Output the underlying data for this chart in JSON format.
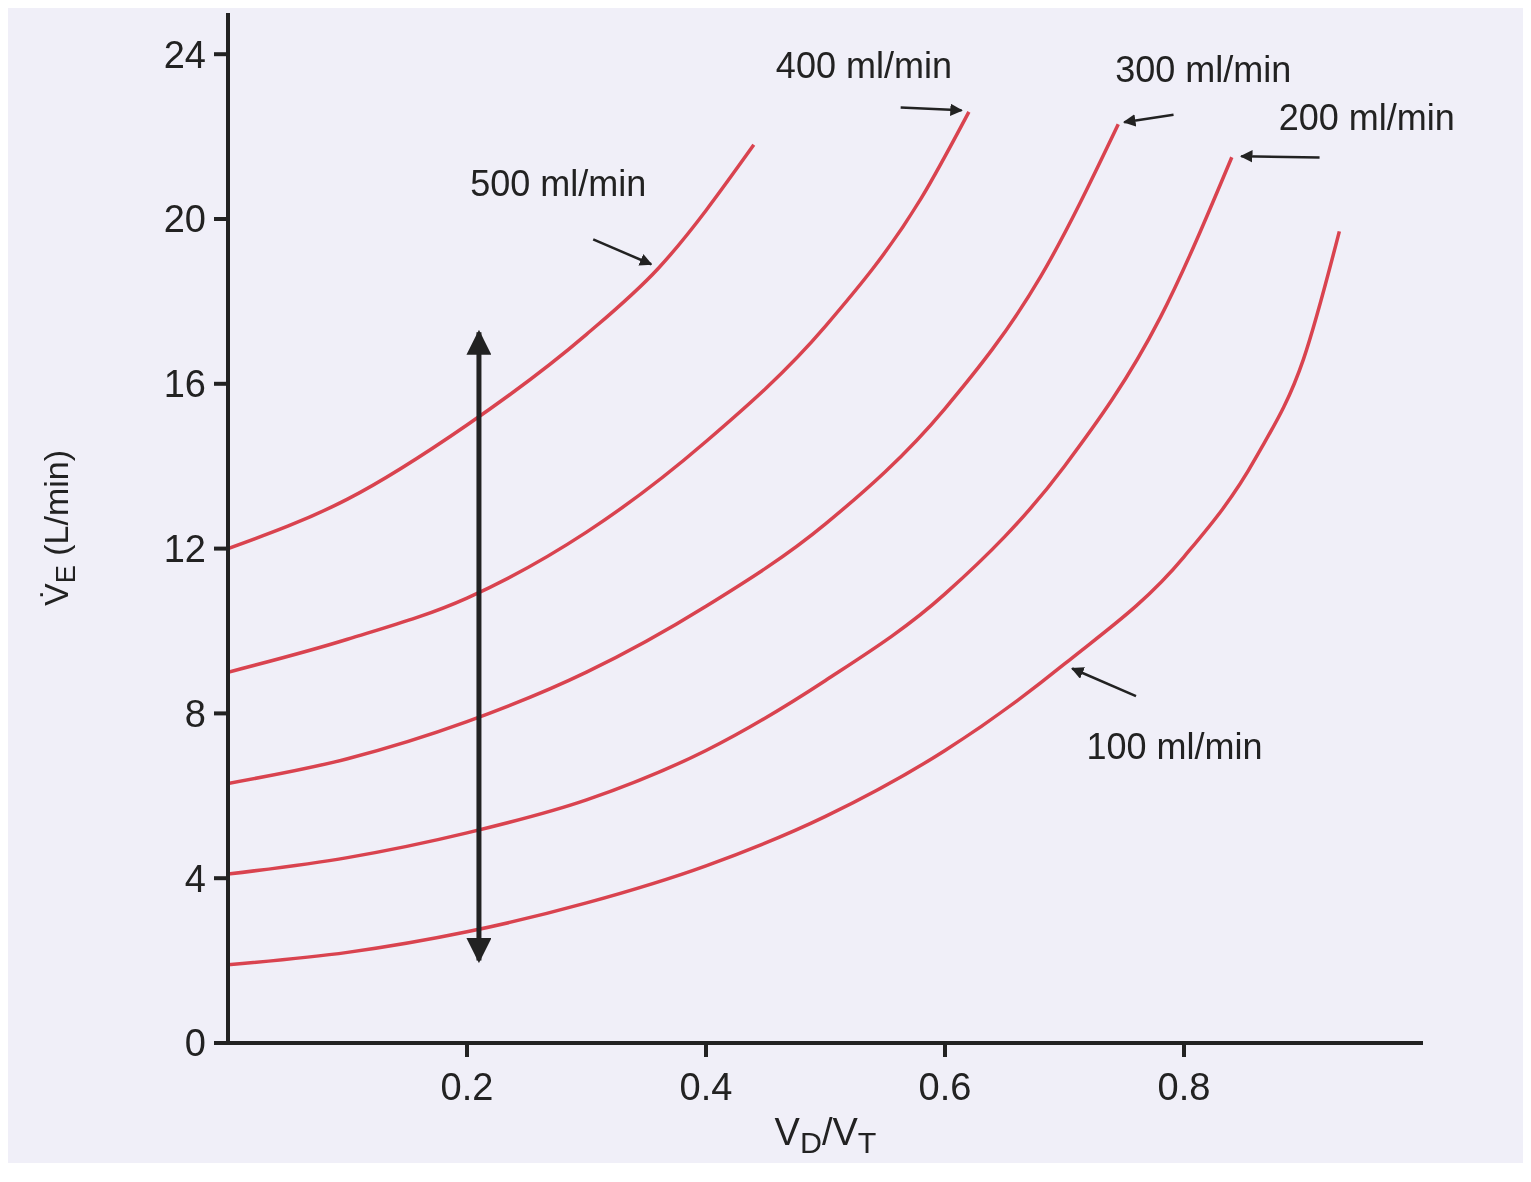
{
  "chart_data": {
    "type": "line",
    "xlabel": "V$_{D}$/V$_{T}$",
    "ylabel": "V̇$_{E}$ (L/min)",
    "xlim": [
      0,
      1
    ],
    "xticks": [
      0.2,
      0.4,
      0.6,
      0.8
    ],
    "ylim": [
      0,
      25
    ],
    "yticks": [
      0,
      4,
      8,
      12,
      16,
      20,
      24
    ],
    "marker": "none",
    "line_style": "solid",
    "series": [
      {
        "name": "500 ml/min",
        "color": "#d9434f",
        "x": [
          0,
          0.1,
          0.2,
          0.3,
          0.36,
          0.44
        ],
        "values": [
          12,
          13.2,
          15,
          17.2,
          18.8,
          21.8
        ]
      },
      {
        "name": "400 ml/min",
        "color": "#d9434f",
        "x": [
          0,
          0.1,
          0.2,
          0.3,
          0.4,
          0.5,
          0.58,
          0.62
        ],
        "values": [
          9,
          9.8,
          10.8,
          12.4,
          14.6,
          17.4,
          20.5,
          22.6
        ]
      },
      {
        "name": "300 ml/min",
        "color": "#d9434f",
        "x": [
          0,
          0.1,
          0.2,
          0.3,
          0.4,
          0.5,
          0.6,
          0.68,
          0.745
        ],
        "values": [
          6.3,
          6.9,
          7.8,
          9,
          10.6,
          12.6,
          15.4,
          18.6,
          22.3
        ]
      },
      {
        "name": "200 ml/min",
        "color": "#d9434f",
        "x": [
          0,
          0.1,
          0.2,
          0.3,
          0.4,
          0.5,
          0.6,
          0.7,
          0.78,
          0.84
        ],
        "values": [
          4.1,
          4.5,
          5.1,
          5.9,
          7.1,
          8.8,
          10.9,
          14,
          17.6,
          21.5
        ]
      },
      {
        "name": "100 ml/min",
        "color": "#d9434f",
        "x": [
          0,
          0.1,
          0.2,
          0.3,
          0.4,
          0.5,
          0.6,
          0.7,
          0.8,
          0.86,
          0.9,
          0.93
        ],
        "values": [
          1.9,
          2.2,
          2.7,
          3.4,
          4.3,
          5.5,
          7.1,
          9.2,
          11.8,
          14.2,
          16.6,
          19.7
        ]
      }
    ]
  }
}
